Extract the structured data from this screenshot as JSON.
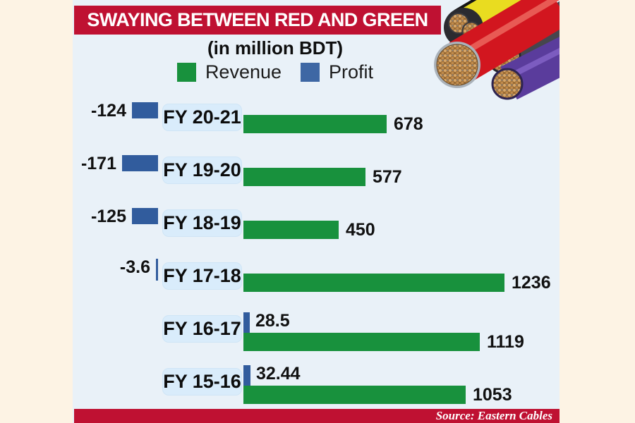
{
  "page": {
    "background": "#fdf3e4",
    "panel_color": "#e9f1f8"
  },
  "header": {
    "title": "SWAYING BETWEEN RED AND GREEN",
    "title_bg": "#bf1132",
    "subtitle": "(in million BDT)"
  },
  "legend": {
    "revenue": "Revenue",
    "profit": "Profit"
  },
  "chart_data": {
    "type": "bar",
    "orientation": "horizontal",
    "title": "SWAYING BETWEEN RED AND GREEN",
    "unit_note": "(in million BDT)",
    "legend_position": "top",
    "axis_range": [
      0,
      1236
    ],
    "grid": false,
    "categories": [
      "FY 20-21",
      "FY 19-20",
      "FY 18-19",
      "FY 17-18",
      "FY 16-17",
      "FY 15-16"
    ],
    "series": [
      {
        "name": "Revenue",
        "color": "#18913d",
        "values": [
          678,
          577,
          450,
          1236,
          1119,
          1053
        ]
      },
      {
        "name": "Profit",
        "color": "#315c9d",
        "values": [
          -124,
          -171,
          -125,
          -3.6,
          28.5,
          32.44
        ]
      }
    ],
    "value_labels": {
      "revenue": [
        "678",
        "577",
        "450",
        "1236",
        "1119",
        "1053"
      ],
      "profit": [
        "-124",
        "-171",
        "-125",
        "-3.6",
        "28.5",
        "32.44"
      ]
    }
  },
  "illustration": {
    "name": "electrical-cables-photo"
  },
  "footer": {
    "source": "Source: Eastern Cables",
    "bg": "#bf1132"
  }
}
